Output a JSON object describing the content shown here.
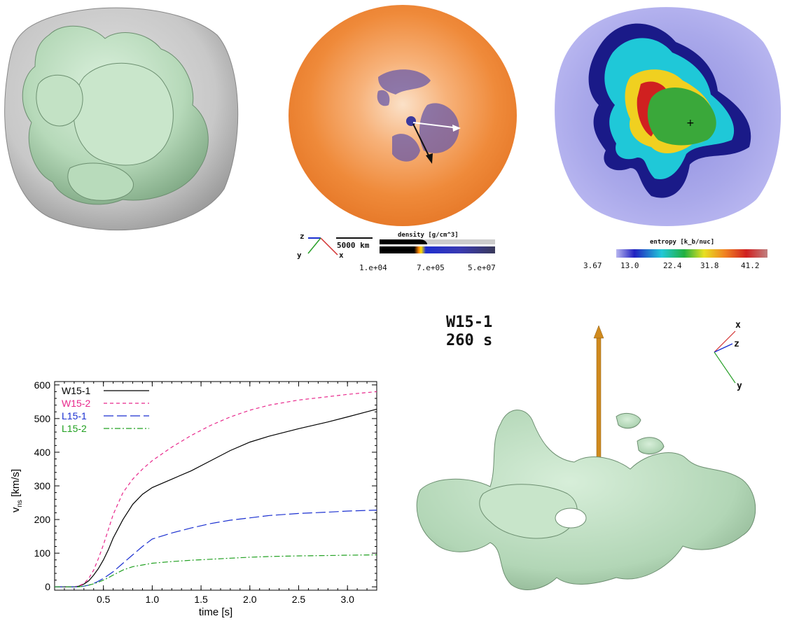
{
  "panel_density": {
    "scale_bar_label": "5000 km",
    "colorbar_title": "density [g/cm^3]",
    "ticks": [
      "1.e+04",
      "7.e+05",
      "5.e+07"
    ],
    "axis_labels": {
      "x": "x",
      "y": "y",
      "z": "z"
    },
    "colors": {
      "x": "#d23030",
      "y": "#2aa02a",
      "z": "#1a2fd0"
    }
  },
  "panel_entropy": {
    "colorbar_title": "entropy [k_b/nuc]",
    "ticks": [
      "3.67",
      "13.0",
      "22.4",
      "31.8",
      "41.2"
    ]
  },
  "panel_3d": {
    "model": "W15-1",
    "time": "260 s",
    "axis_labels": {
      "x": "x",
      "z": "z",
      "y": "y"
    },
    "kick_arrow_color": "#d08a1e"
  },
  "chart_data": {
    "type": "line",
    "xlabel": "time [s]",
    "ylabel_main": "v",
    "ylabel_sub": "ns",
    "ylabel_unit": "[km/s]",
    "xlim": [
      0,
      3.3
    ],
    "ylim": [
      -10,
      610
    ],
    "xticks": [
      0.5,
      1.0,
      1.5,
      2.0,
      2.5,
      3.0
    ],
    "xtick_labels": [
      "0.5",
      "1.0",
      "1.5",
      "2.0",
      "2.5",
      "3.0"
    ],
    "yticks": [
      0,
      100,
      200,
      300,
      400,
      500,
      600
    ],
    "ytick_labels": [
      "0",
      "100",
      "200",
      "300",
      "400",
      "500",
      "600"
    ],
    "legend_position": "top-left",
    "x": [
      0.0,
      0.1,
      0.2,
      0.25,
      0.3,
      0.35,
      0.4,
      0.45,
      0.5,
      0.55,
      0.6,
      0.7,
      0.8,
      0.9,
      1.0,
      1.2,
      1.4,
      1.6,
      1.8,
      2.0,
      2.2,
      2.5,
      2.8,
      3.0,
      3.3
    ],
    "series": [
      {
        "name": "W15-1",
        "color": "#000000",
        "dash": "",
        "values": [
          0,
          0,
          0,
          2,
          8,
          18,
          35,
          55,
          80,
          110,
          145,
          200,
          245,
          275,
          295,
          320,
          345,
          375,
          405,
          430,
          448,
          470,
          490,
          505,
          528
        ]
      },
      {
        "name": "W15-2",
        "color": "#e8288c",
        "dash": "5,4",
        "values": [
          0,
          0,
          0,
          3,
          10,
          25,
          50,
          85,
          125,
          170,
          215,
          280,
          320,
          350,
          375,
          415,
          450,
          480,
          505,
          525,
          540,
          555,
          565,
          572,
          580
        ]
      },
      {
        "name": "L15-1",
        "color": "#1a2fd0",
        "dash": "14,5",
        "values": [
          0,
          0,
          0,
          0,
          2,
          5,
          10,
          17,
          25,
          35,
          45,
          70,
          95,
          120,
          142,
          160,
          175,
          188,
          198,
          205,
          212,
          218,
          222,
          225,
          228
        ]
      },
      {
        "name": "L15-2",
        "color": "#20a020",
        "dash": "8,3,2,3",
        "values": [
          0,
          0,
          0,
          0,
          2,
          5,
          9,
          14,
          20,
          27,
          35,
          50,
          60,
          65,
          70,
          75,
          79,
          82,
          85,
          88,
          90,
          92,
          93,
          94,
          95
        ]
      }
    ]
  }
}
